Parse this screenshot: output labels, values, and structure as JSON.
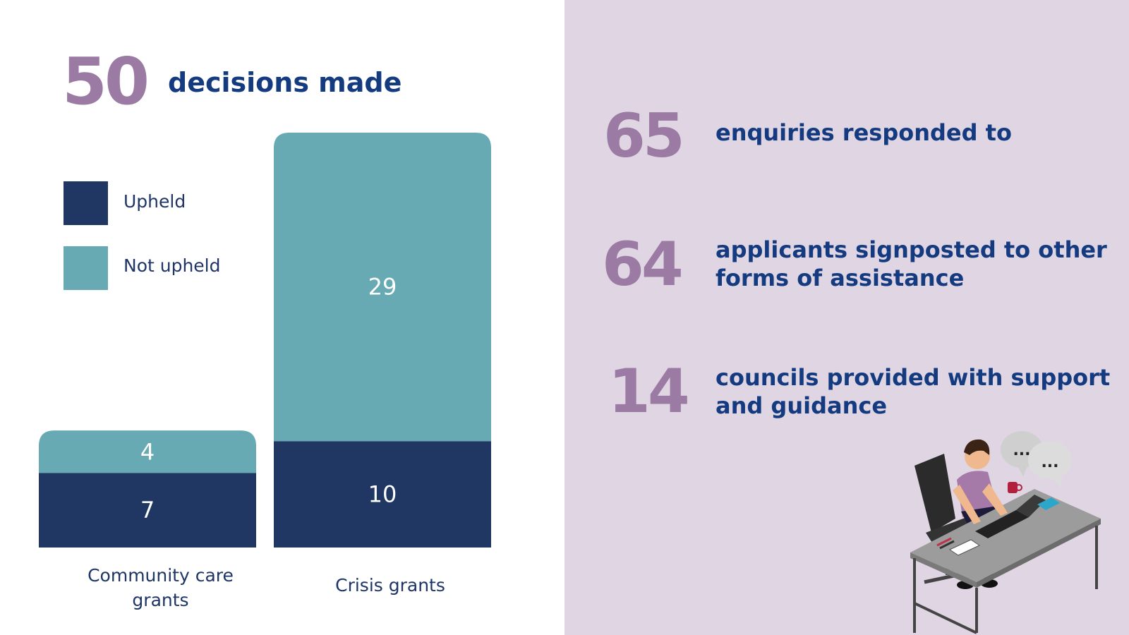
{
  "headline": {
    "number": "50",
    "label": "decisions made"
  },
  "legend": {
    "upheld": "Upheld",
    "not_upheld": "Not upheld"
  },
  "colors": {
    "upheld": "#203764",
    "not_upheld": "#67aab3",
    "accent_number": "#9b7aa3",
    "headline_text": "#143a80",
    "right_panel_bg": "#e0d5e3"
  },
  "chart_data": {
    "type": "bar",
    "stacked": true,
    "categories": [
      "Community care grants",
      "Crisis grants"
    ],
    "category_labels": [
      "Community care\ngrants",
      "Crisis grants"
    ],
    "series": [
      {
        "name": "Upheld",
        "values": [
          7,
          10
        ]
      },
      {
        "name": "Not upheld",
        "values": [
          4,
          29
        ]
      }
    ],
    "title": "",
    "xlabel": "",
    "ylabel": "",
    "ylim": [
      0,
      39
    ],
    "grid": false,
    "legend_position": "top-left"
  },
  "stats": [
    {
      "number": "65",
      "text": "enquiries responded to"
    },
    {
      "number": "64",
      "text": "applicants signposted to other forms of assistance"
    },
    {
      "number": "14",
      "text": "councils provided with support and guidance"
    }
  ],
  "illustration": {
    "icon": "person-at-desk-with-laptop-icon",
    "bubble_1": "...",
    "bubble_2": "..."
  }
}
